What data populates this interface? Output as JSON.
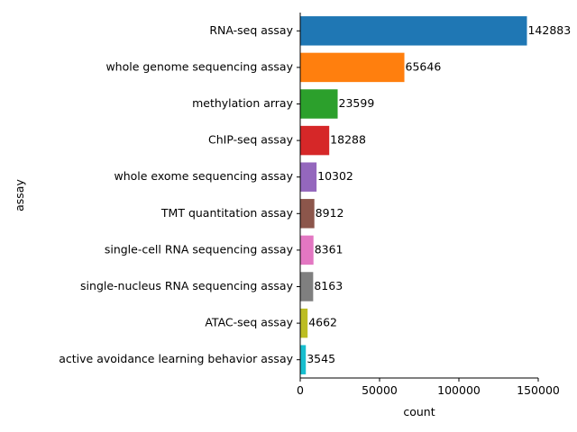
{
  "chart_data": {
    "type": "bar",
    "orientation": "horizontal",
    "xlabel": "count",
    "ylabel": "assay",
    "xlim": [
      0,
      150000
    ],
    "x_ticks": [
      0,
      50000,
      100000,
      150000
    ],
    "x_tick_labels": [
      "0",
      "50000",
      "100000",
      "150000"
    ],
    "grid": false,
    "legend": "none",
    "categories": [
      "RNA-seq assay",
      "whole genome sequencing assay",
      "methylation array",
      "ChIP-seq assay",
      "whole exome sequencing assay",
      "TMT quantitation assay",
      "single-cell RNA sequencing assay",
      "single-nucleus RNA sequencing assay",
      "ATAC-seq assay",
      "active avoidance learning behavior assay"
    ],
    "values": [
      142883,
      65646,
      23599,
      18288,
      10302,
      8912,
      8361,
      8163,
      4662,
      3545
    ],
    "data_labels": [
      "142883",
      "65646",
      "23599",
      "18288",
      "10302",
      "8912",
      "8361",
      "8163",
      "4662",
      "3545"
    ],
    "colors": [
      "#1f77b4",
      "#ff7f0e",
      "#2ca02c",
      "#d62728",
      "#9467bd",
      "#8c564b",
      "#e377c2",
      "#7f7f7f",
      "#bcbd22",
      "#17becf"
    ]
  }
}
